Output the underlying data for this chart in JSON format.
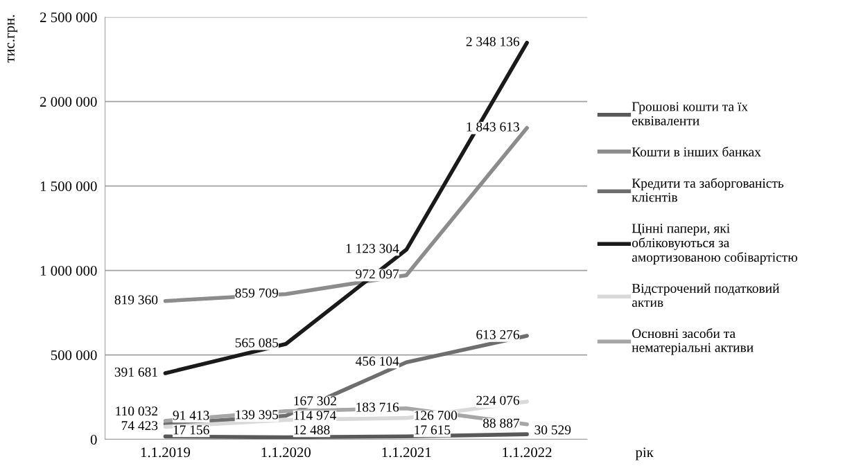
{
  "chart_data": {
    "type": "line",
    "ylabel": "тис.грн.",
    "xlabel": "рік",
    "categories": [
      "1.1.2019",
      "1.1.2020",
      "1.1.2021",
      "1.1.2022"
    ],
    "series": [
      {
        "name": "Грошові кошти та їх еквіваленти",
        "color": "#595959",
        "values": [
          17156,
          12488,
          17615,
          30529
        ]
      },
      {
        "name": "Кошти в інших банках",
        "color": "#8c8c8c",
        "values": [
          819360,
          859709,
          972097,
          1843613
        ]
      },
      {
        "name": "Кредити та заборгованість клієнтів",
        "color": "#6e6e6e",
        "values": [
          91413,
          139395,
          456104,
          613276
        ]
      },
      {
        "name": "Цінні папери, які обліковуються за амортизованою собівартістю",
        "color": "#1a1a1a",
        "values": [
          391681,
          565085,
          1123304,
          2348136
        ]
      },
      {
        "name": "Відстрочений податковий актив",
        "color": "#d9d9d9",
        "values": [
          74423,
          114974,
          126700,
          224076
        ]
      },
      {
        "name": "Основні засоби та нематеріальні активи",
        "color": "#a6a6a6",
        "values": [
          110032,
          167302,
          183716,
          88887
        ]
      }
    ],
    "ylim": [
      0,
      2500000
    ],
    "yticks": [
      {
        "value": 0,
        "label": "0"
      },
      {
        "value": 500000,
        "label": "500 000"
      },
      {
        "value": 1000000,
        "label": "1 000 000"
      },
      {
        "value": 1500000,
        "label": "1 500 000"
      },
      {
        "value": 2000000,
        "label": "2 000 000"
      },
      {
        "value": 2500000,
        "label": "2 500 000"
      }
    ],
    "grid": "y",
    "legend": "right",
    "marker": "none",
    "line_style": "solid",
    "data_labels": true
  }
}
